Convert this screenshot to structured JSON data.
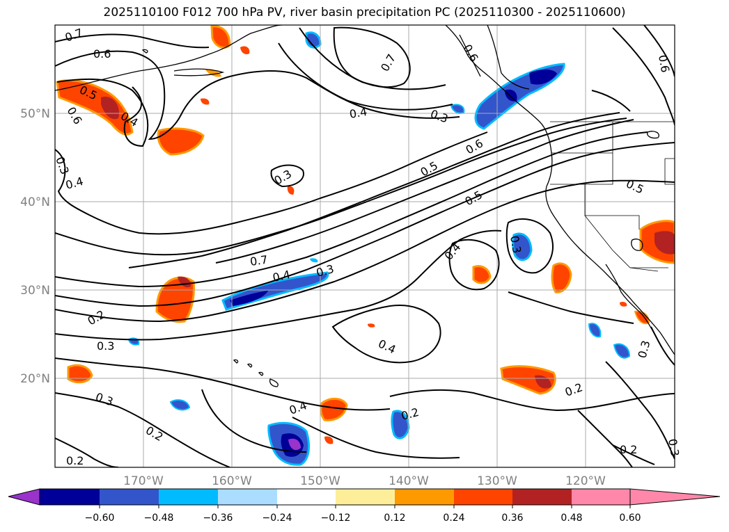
{
  "title": "2025110100 F012 700 hPa PV, river basin precipitation PC (2025110300 - 2025110600)",
  "lat_labels": [
    "50°N",
    "40°N",
    "30°N",
    "20°N"
  ],
  "lon_labels": [
    "170°W",
    "160°W",
    "150°W",
    "140°W",
    "130°W",
    "120°W"
  ],
  "contour_labels": [
    "0.7",
    "0.6",
    "0.5",
    "0.4",
    "0.6",
    "0.3",
    "0.4",
    "0.3",
    "0.4",
    "0.3",
    "0.6",
    "0.5",
    "0.5",
    "0.7",
    "0.4",
    "0.3",
    "0.4",
    "0.3",
    "0.2",
    "0.3",
    "0.4",
    "0.3",
    "0.2",
    "0.4",
    "0.2",
    "0.2",
    "0.3",
    "0.2",
    "0.2",
    "0.3",
    "0.7",
    "0.6",
    "0.6",
    "0.5"
  ],
  "colorbar": {
    "ticks": [
      "−0.60",
      "−0.48",
      "−0.36",
      "−0.24",
      "−0.12",
      "0.12",
      "0.24",
      "0.36",
      "0.48",
      "0.60"
    ],
    "colors": [
      "#9933cc",
      "#000099",
      "#3355cc",
      "#00bbff",
      "#aaddff",
      "#ffffff",
      "#ffee99",
      "#ff9900",
      "#ff4400",
      "#b22222",
      "#ff88aa"
    ]
  }
}
